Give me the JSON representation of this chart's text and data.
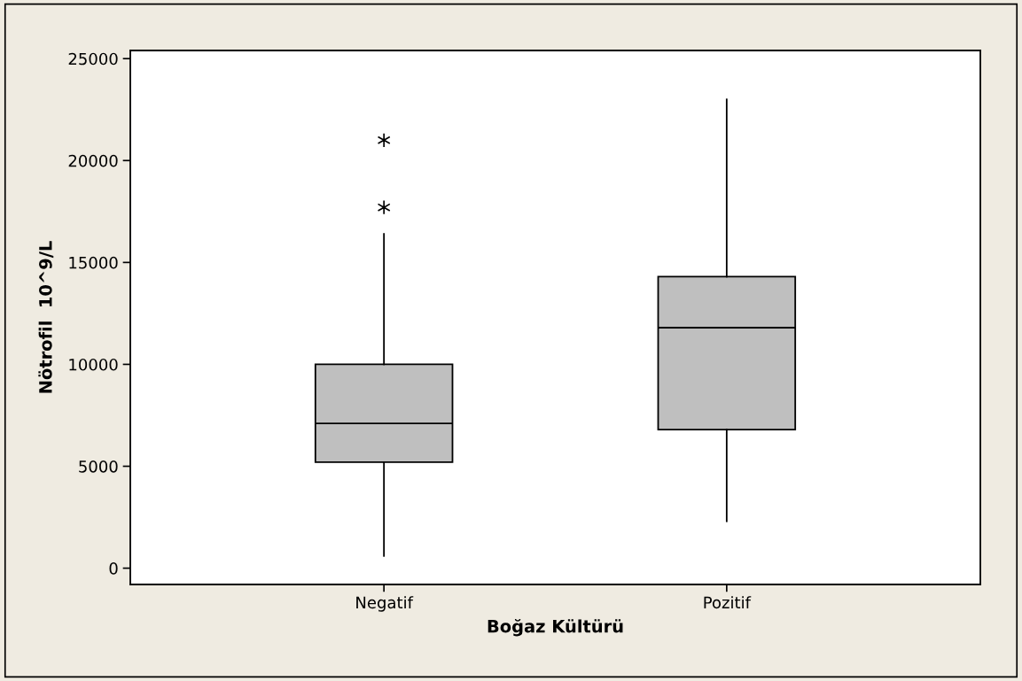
{
  "chart_data": {
    "type": "box",
    "xlabel": "Boğaz Kültürü",
    "ylabel": "Nötrofil  10^9/L",
    "categories": [
      "Negatif",
      "Pozitif"
    ],
    "series": [
      {
        "color": "#bfbfbf",
        "boxes": [
          {
            "low": 600,
            "q1": 5200,
            "median": 7100,
            "q3": 10000,
            "high": 16400,
            "outliers": [
              17700,
              21000
            ]
          },
          {
            "low": 2300,
            "q1": 6800,
            "median": 11800,
            "q3": 14300,
            "high": 23000
          }
        ]
      }
    ],
    "ylim": [
      -800,
      25400
    ],
    "yticks": [
      0,
      5000,
      10000,
      15000,
      20000,
      25000
    ],
    "grid": false,
    "legend": false,
    "marker": "star"
  }
}
